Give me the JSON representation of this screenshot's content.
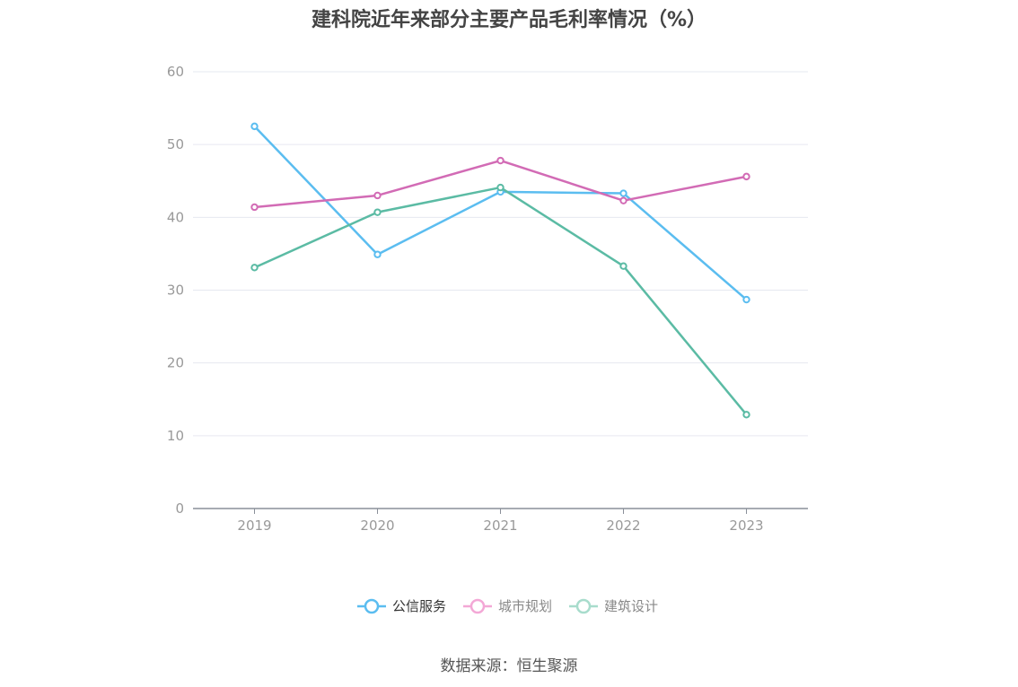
{
  "chart_data": {
    "type": "line",
    "title": "建科院近年来部分主要产品毛利率情况（%）",
    "categories": [
      "2019",
      "2020",
      "2021",
      "2022",
      "2023"
    ],
    "ylim": [
      0,
      60
    ],
    "yticks": [
      0,
      10,
      20,
      30,
      40,
      50,
      60
    ],
    "grid": true,
    "legend_position": "bottom-center",
    "series": [
      {
        "name": "公信服务",
        "color": "#5bbdf0",
        "values": [
          52.5,
          34.9,
          43.5,
          43.3,
          28.7
        ]
      },
      {
        "name": "城市规划",
        "color": "#d26bb5",
        "values": [
          41.4,
          43.0,
          47.8,
          42.3,
          45.6
        ]
      },
      {
        "name": "建筑设计",
        "color": "#5bbba4",
        "values": [
          33.1,
          40.7,
          44.1,
          33.3,
          12.9
        ]
      }
    ]
  },
  "legend_colors": [
    "#5bbdf0",
    "#f3a8d6",
    "#a8dccc"
  ],
  "source": "数据来源：恒生聚源"
}
